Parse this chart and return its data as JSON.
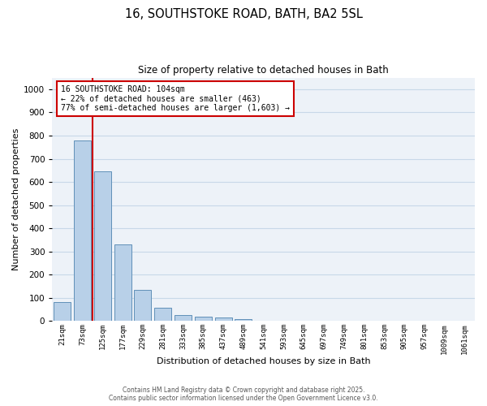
{
  "title_line1": "16, SOUTHSTOKE ROAD, BATH, BA2 5SL",
  "title_line2": "Size of property relative to detached houses in Bath",
  "xlabel": "Distribution of detached houses by size in Bath",
  "ylabel": "Number of detached properties",
  "annotation_title": "16 SOUTHSTOKE ROAD: 104sqm",
  "annotation_line2": "← 22% of detached houses are smaller (463)",
  "annotation_line3": "77% of semi-detached houses are larger (1,603) →",
  "bar_labels": [
    "21sqm",
    "73sqm",
    "125sqm",
    "177sqm",
    "229sqm",
    "281sqm",
    "333sqm",
    "385sqm",
    "437sqm",
    "489sqm",
    "541sqm",
    "593sqm",
    "645sqm",
    "697sqm",
    "749sqm",
    "801sqm",
    "853sqm",
    "905sqm",
    "957sqm",
    "1009sqm",
    "1061sqm"
  ],
  "bar_values": [
    82,
    780,
    645,
    330,
    135,
    57,
    27,
    20,
    15,
    10,
    0,
    0,
    0,
    0,
    0,
    0,
    0,
    0,
    0,
    0,
    0
  ],
  "bar_color": "#b8d0e8",
  "bar_edge_color": "#6090b8",
  "vline_color": "#cc0000",
  "ylim": [
    0,
    1050
  ],
  "yticks": [
    0,
    100,
    200,
    300,
    400,
    500,
    600,
    700,
    800,
    900,
    1000
  ],
  "grid_color": "#c8d8e8",
  "bg_color": "#edf2f8",
  "annotation_box_color": "#cc0000",
  "footer_line1": "Contains HM Land Registry data © Crown copyright and database right 2025.",
  "footer_line2": "Contains public sector information licensed under the Open Government Licence v3.0."
}
